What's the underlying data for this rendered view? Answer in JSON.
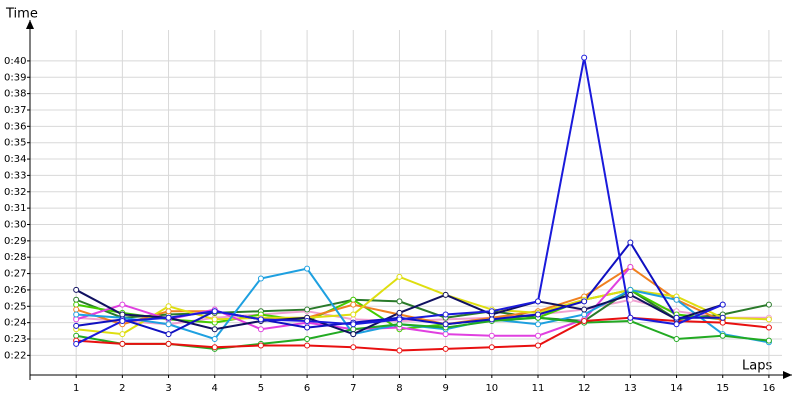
{
  "chart_data": {
    "type": "line",
    "y_label": "Time",
    "x_label": "Laps",
    "grid": true,
    "x": [
      1,
      2,
      3,
      4,
      5,
      6,
      7,
      8,
      9,
      10,
      11,
      12,
      13,
      14,
      15,
      16
    ],
    "xlim": [
      0,
      16.5
    ],
    "xticks": [
      1,
      2,
      3,
      4,
      5,
      6,
      7,
      8,
      9,
      10,
      11,
      12,
      13,
      14,
      15,
      16
    ],
    "ylim": [
      20.8,
      42.5
    ],
    "yticks": [
      {
        "value": 22,
        "label": "0:22"
      },
      {
        "value": 23,
        "label": "0:23"
      },
      {
        "value": 24,
        "label": "0:24"
      },
      {
        "value": 25,
        "label": "0:25"
      },
      {
        "value": 26,
        "label": "0:26"
      },
      {
        "value": 27,
        "label": "0:27"
      },
      {
        "value": 28,
        "label": "0:28"
      },
      {
        "value": 29,
        "label": "0:29"
      },
      {
        "value": 30,
        "label": "0:30"
      },
      {
        "value": 31,
        "label": "0:31"
      },
      {
        "value": 32,
        "label": "0:32"
      },
      {
        "value": 33,
        "label": "0:33"
      },
      {
        "value": 34,
        "label": "0:34"
      },
      {
        "value": 35,
        "label": "0:35"
      },
      {
        "value": 36,
        "label": "0:36"
      },
      {
        "value": 37,
        "label": "0:37"
      },
      {
        "value": 38,
        "label": "0:38"
      },
      {
        "value": 39,
        "label": "0:39"
      },
      {
        "value": 40,
        "label": "0:40"
      }
    ],
    "series": [
      {
        "color": "#f0a0d0",
        "values": [
          24.3,
          24.1,
          23.9,
          24.3,
          24.5,
          24.7,
          24.2,
          24.1,
          24.2,
          24.3,
          24.5,
          24.8,
          25.4,
          24.7,
          24.3,
          24.3
        ]
      },
      {
        "color": "#2a7a2a",
        "values": [
          25.4,
          24.3,
          24.5,
          24.6,
          24.7,
          24.8,
          25.4,
          25.3,
          24.3,
          24.7,
          24.3,
          24.1,
          26.0,
          24.2,
          24.5,
          25.1
        ]
      },
      {
        "color": "#44cc00",
        "values": [
          25.1,
          24.6,
          24.2,
          24.0,
          24.5,
          24.1,
          25.4,
          23.6,
          23.9,
          24.2,
          24.3,
          25.4,
          26.0,
          24.5,
          24.2,
          null
        ]
      },
      {
        "color": "#f08020",
        "values": [
          24.8,
          23.9,
          24.7,
          24.7,
          24.2,
          24.3,
          25.1,
          24.5,
          23.9,
          24.3,
          24.7,
          25.6,
          27.4,
          25.4,
          24.1,
          null
        ]
      },
      {
        "color": "#dede10",
        "values": [
          23.6,
          23.3,
          25.0,
          24.2,
          24.3,
          24.3,
          24.5,
          26.8,
          25.7,
          24.8,
          24.6,
          25.4,
          26.0,
          25.6,
          24.3,
          24.2
        ]
      },
      {
        "color": "#e040e0",
        "values": [
          24.2,
          25.1,
          24.2,
          24.8,
          23.6,
          24.0,
          23.6,
          23.7,
          23.3,
          23.2,
          23.2,
          24.2,
          27.4,
          null,
          null,
          null
        ]
      },
      {
        "color": "#1ea0e0",
        "values": [
          24.5,
          24.3,
          23.9,
          23.0,
          26.7,
          27.3,
          23.3,
          23.9,
          23.6,
          24.2,
          23.9,
          24.5,
          26.0,
          25.4,
          23.3,
          22.8
        ]
      },
      {
        "color": "#22aa22",
        "values": [
          23.2,
          22.7,
          22.7,
          22.4,
          22.7,
          23.0,
          23.6,
          23.9,
          23.7,
          24.1,
          24.3,
          24.0,
          24.1,
          23.0,
          23.2,
          22.9
        ]
      },
      {
        "color": "#e81010",
        "values": [
          22.9,
          22.7,
          22.7,
          22.5,
          22.6,
          22.6,
          22.5,
          22.3,
          22.4,
          22.5,
          22.6,
          24.1,
          24.3,
          24.1,
          24.0,
          23.7
        ]
      },
      {
        "color": "#101060",
        "values": [
          26.0,
          24.5,
          24.3,
          23.6,
          24.1,
          24.3,
          23.3,
          24.6,
          25.7,
          24.5,
          25.3,
          24.8,
          25.7,
          24.2,
          25.1,
          null
        ]
      },
      {
        "color": "#1010c0",
        "values": [
          23.8,
          24.2,
          23.3,
          24.7,
          24.2,
          23.7,
          24.0,
          24.3,
          23.9,
          24.2,
          24.5,
          25.3,
          28.9,
          24.3,
          24.3,
          null
        ]
      },
      {
        "color": "#1a1adb",
        "values": [
          22.7,
          24.1,
          24.3,
          24.7,
          24.2,
          24.1,
          23.9,
          24.2,
          24.5,
          24.7,
          25.3,
          40.2,
          24.3,
          23.9,
          25.1,
          null
        ]
      }
    ]
  }
}
